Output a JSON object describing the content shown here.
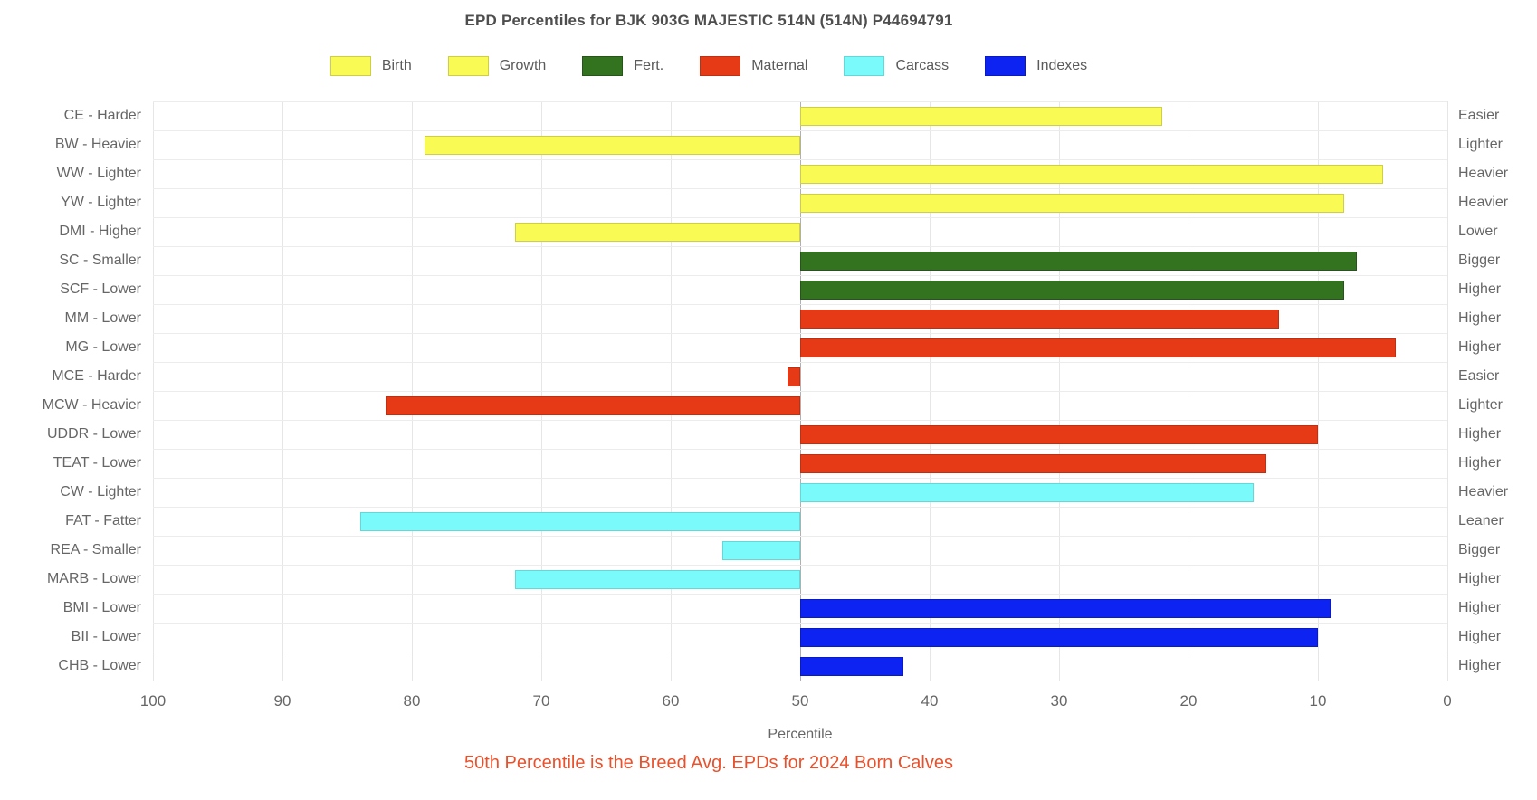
{
  "title": "EPD Percentiles for BJK 903G MAJESTIC 514N (514N) P44694791",
  "footnote": "50th Percentile is the Breed Avg. EPDs for 2024 Born Calves",
  "legend": [
    {
      "label": "Birth",
      "category": "Birth",
      "color": "#fafa55",
      "border": "#cfcf45"
    },
    {
      "label": "Growth",
      "category": "Growth",
      "color": "#fafa55",
      "border": "#cfcf45"
    },
    {
      "label": "Fert.",
      "category": "Fert.",
      "color": "#33731f",
      "border": "#26551a"
    },
    {
      "label": "Maternal",
      "category": "Maternal",
      "color": "#e63a17",
      "border": "#bf2f12"
    },
    {
      "label": "Carcass",
      "category": "Carcass",
      "color": "#7afafa",
      "border": "#62d8d8"
    },
    {
      "label": "Indexes",
      "category": "Indexes",
      "color": "#0d23f2",
      "border": "#0a1bc4"
    }
  ],
  "chart_data": {
    "type": "bar",
    "orientation": "horizontal",
    "baseline": 50,
    "x_axis": {
      "label": "Percentile",
      "min": 0,
      "max": 100,
      "reversed": true,
      "ticks": [
        100,
        90,
        80,
        70,
        60,
        50,
        40,
        30,
        20,
        10,
        0
      ]
    },
    "category_colors": {
      "Birth": {
        "fill": "#fafa55",
        "border": "#cfcf45"
      },
      "Growth": {
        "fill": "#fafa55",
        "border": "#cfcf45"
      },
      "Fert.": {
        "fill": "#33731f",
        "border": "#26551a"
      },
      "Maternal": {
        "fill": "#e63a17",
        "border": "#bf2f12"
      },
      "Carcass": {
        "fill": "#7afafa",
        "border": "#62d8d8"
      },
      "Indexes": {
        "fill": "#0d23f2",
        "border": "#0a1bc4"
      }
    },
    "rows": [
      {
        "trait": "CE",
        "label": "CE - Harder",
        "right_label": "Easier",
        "category": "Birth",
        "value": 22
      },
      {
        "trait": "BW",
        "label": "BW - Heavier",
        "right_label": "Lighter",
        "category": "Birth",
        "value": 79
      },
      {
        "trait": "WW",
        "label": "WW - Lighter",
        "right_label": "Heavier",
        "category": "Growth",
        "value": 5
      },
      {
        "trait": "YW",
        "label": "YW - Lighter",
        "right_label": "Heavier",
        "category": "Growth",
        "value": 8
      },
      {
        "trait": "DMI",
        "label": "DMI - Higher",
        "right_label": "Lower",
        "category": "Growth",
        "value": 72
      },
      {
        "trait": "SC",
        "label": "SC - Smaller",
        "right_label": "Bigger",
        "category": "Fert.",
        "value": 7
      },
      {
        "trait": "SCF",
        "label": "SCF - Lower",
        "right_label": "Higher",
        "category": "Fert.",
        "value": 8
      },
      {
        "trait": "MM",
        "label": "MM - Lower",
        "right_label": "Higher",
        "category": "Maternal",
        "value": 13
      },
      {
        "trait": "MG",
        "label": "MG - Lower",
        "right_label": "Higher",
        "category": "Maternal",
        "value": 4
      },
      {
        "trait": "MCE",
        "label": "MCE - Harder",
        "right_label": "Easier",
        "category": "Maternal",
        "value": 51
      },
      {
        "trait": "MCW",
        "label": "MCW - Heavier",
        "right_label": "Lighter",
        "category": "Maternal",
        "value": 82
      },
      {
        "trait": "UDDR",
        "label": "UDDR - Lower",
        "right_label": "Higher",
        "category": "Maternal",
        "value": 10
      },
      {
        "trait": "TEAT",
        "label": "TEAT - Lower",
        "right_label": "Higher",
        "category": "Maternal",
        "value": 14
      },
      {
        "trait": "CW",
        "label": "CW - Lighter",
        "right_label": "Heavier",
        "category": "Carcass",
        "value": 15
      },
      {
        "trait": "FAT",
        "label": "FAT - Fatter",
        "right_label": "Leaner",
        "category": "Carcass",
        "value": 84
      },
      {
        "trait": "REA",
        "label": "REA - Smaller",
        "right_label": "Bigger",
        "category": "Carcass",
        "value": 56
      },
      {
        "trait": "MARB",
        "label": "MARB - Lower",
        "right_label": "Higher",
        "category": "Carcass",
        "value": 72
      },
      {
        "trait": "BMI",
        "label": "BMI - Lower",
        "right_label": "Higher",
        "category": "Indexes",
        "value": 9
      },
      {
        "trait": "BII",
        "label": "BII - Lower",
        "right_label": "Higher",
        "category": "Indexes",
        "value": 10
      },
      {
        "trait": "CHB",
        "label": "CHB - Lower",
        "right_label": "Higher",
        "category": "Indexes",
        "value": 42
      }
    ]
  }
}
